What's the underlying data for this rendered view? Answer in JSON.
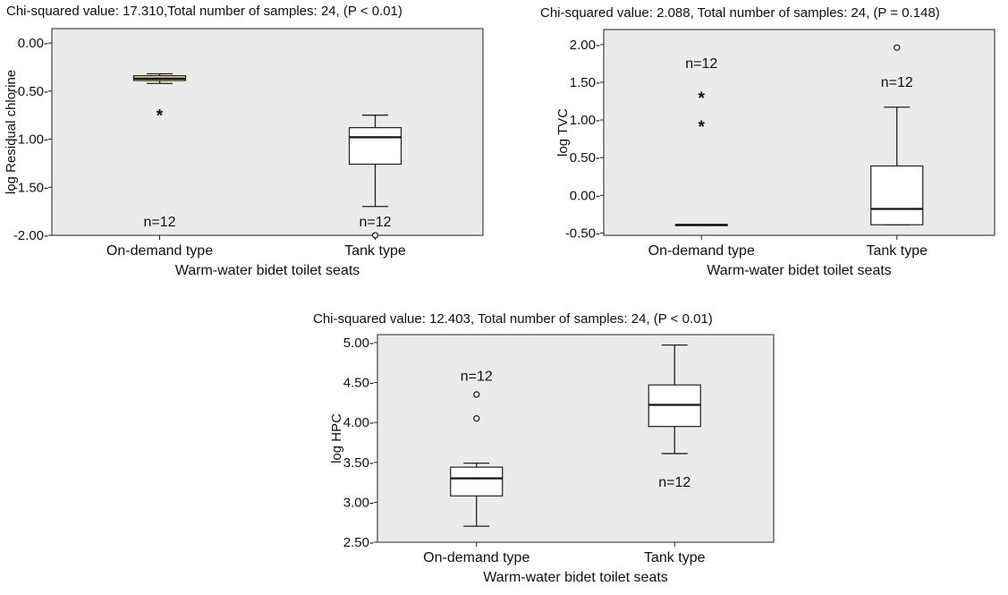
{
  "chart_data": [
    {
      "type": "boxplot",
      "title": "Chi-squared value: 17.310,Total number of samples: 24, (P < 0.01)",
      "xlabel": "Warm-water bidet toilet seats",
      "ylabel": "log Residual chlorine",
      "ylim": [
        -2.0,
        0.15
      ],
      "yticks": [
        0.0,
        -0.5,
        -1.0,
        -1.5,
        -2.0
      ],
      "ytick_labels": [
        "0.00-",
        "-0.50-",
        "-1.00-",
        "-1.50-",
        "-2.00-"
      ],
      "grid": false,
      "background": "#ebebeb",
      "categories": [
        "On-demand type",
        "Tank type"
      ],
      "boxes": [
        {
          "category": "On-demand type",
          "whisker_low": -0.42,
          "q1": -0.39,
          "median": -0.37,
          "q3": -0.34,
          "whisker_high": -0.32,
          "fill": "#f0dca0",
          "outliers": [],
          "extremes": [
            -0.73
          ],
          "n_label": "n=12",
          "n_label_y": -1.86
        },
        {
          "category": "Tank type",
          "whisker_low": -1.7,
          "q1": -1.26,
          "median": -0.98,
          "q3": -0.88,
          "whisker_high": -0.75,
          "fill": "#ffffff",
          "outliers": [
            -2.0
          ],
          "extremes": [],
          "n_label": "n=12",
          "n_label_y": -1.86
        }
      ]
    },
    {
      "type": "boxplot",
      "title": "Chi-squared value: 2.088, Total number of samples: 24, (P = 0.148)",
      "xlabel": "Warm-water bidet toilet seats",
      "ylabel": "log TVC",
      "ylim": [
        -0.53,
        2.2
      ],
      "yticks": [
        2.0,
        1.5,
        1.0,
        0.5,
        0.0,
        -0.5
      ],
      "ytick_labels": [
        "2.00-",
        "1.50-",
        "1.00-",
        "0.50-",
        "0.00-",
        "-0.50-"
      ],
      "grid": false,
      "background": "#ebebeb",
      "categories": [
        "On-demand type",
        "Tank type"
      ],
      "boxes": [
        {
          "category": "On-demand type",
          "whisker_low": -0.39,
          "q1": -0.39,
          "median": -0.39,
          "q3": -0.39,
          "whisker_high": -0.39,
          "fill": "#ffffff",
          "outliers": [],
          "extremes": [
            1.32,
            0.94
          ],
          "n_label": "n=12",
          "n_label_y": 1.75
        },
        {
          "category": "Tank type",
          "whisker_low": -0.39,
          "q1": -0.39,
          "median": -0.18,
          "q3": 0.39,
          "whisker_high": 1.17,
          "fill": "#ffffff",
          "outliers": [
            1.96
          ],
          "extremes": [],
          "n_label": "n=12",
          "n_label_y": 1.5
        }
      ]
    },
    {
      "type": "boxplot",
      "title": "Chi-squared value: 12.403, Total number of samples: 24,  (P < 0.01)",
      "xlabel": "Warm-water bidet toilet seats",
      "ylabel": "log HPC",
      "ylim": [
        2.5,
        5.1
      ],
      "yticks": [
        5.0,
        4.5,
        4.0,
        3.5,
        3.0,
        2.5
      ],
      "ytick_labels": [
        "5.00-",
        "4.50-",
        "4.00-",
        "3.50-",
        "3.00-",
        "2.50-"
      ],
      "grid": false,
      "background": "#ebebeb",
      "categories": [
        "On-demand type",
        "Tank type"
      ],
      "boxes": [
        {
          "category": "On-demand type",
          "whisker_low": 2.7,
          "q1": 3.08,
          "median": 3.3,
          "q3": 3.44,
          "whisker_high": 3.49,
          "fill": "#ffffff",
          "outliers": [
            4.35,
            4.05
          ],
          "extremes": [],
          "n_label": "n=12",
          "n_label_y": 4.58
        },
        {
          "category": "Tank type",
          "whisker_low": 3.61,
          "q1": 3.95,
          "median": 4.22,
          "q3": 4.47,
          "whisker_high": 4.97,
          "fill": "#ffffff",
          "outliers": [],
          "extremes": [],
          "n_label": "n=12",
          "n_label_y": 3.25
        }
      ]
    }
  ]
}
